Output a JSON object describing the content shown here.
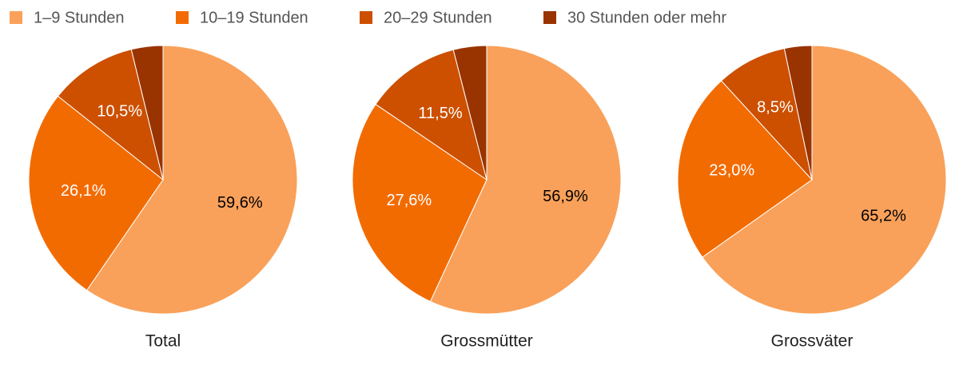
{
  "chart_data": [
    {
      "type": "pie",
      "title": "Total",
      "categories": [
        "1–9 Stunden",
        "10–19 Stunden",
        "20–29 Stunden",
        "30 Stunden oder mehr"
      ],
      "colors": [
        "#f9a15a",
        "#f26b00",
        "#cc5000",
        "#993300"
      ],
      "values": [
        59.6,
        26.1,
        10.5,
        3.8
      ],
      "value_labels": [
        "59,6%",
        "26,1%",
        "10,5%",
        null
      ]
    },
    {
      "type": "pie",
      "title": "Grossmütter",
      "values": [
        56.9,
        27.6,
        11.5,
        4.0
      ],
      "value_labels": [
        "56,9%",
        "27,6%",
        "11,5%",
        null
      ]
    },
    {
      "type": "pie",
      "title": "Grossväter",
      "values": [
        65.2,
        23.0,
        8.5,
        3.3
      ],
      "value_labels": [
        "65,2%",
        "23,0%",
        "8,5%",
        null
      ]
    }
  ]
}
